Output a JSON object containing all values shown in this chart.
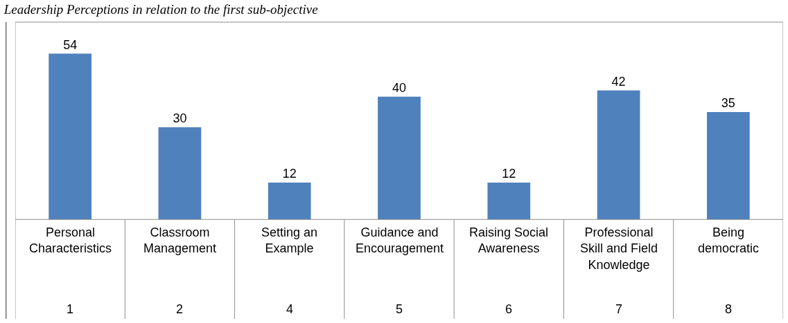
{
  "chart_data": {
    "type": "bar",
    "title": "Leadership Perceptions in relation to the first sub-objective",
    "categories": [
      "Personal Characteristics",
      "Classroom Management",
      "Setting an Example",
      "Guidance and Encouragement",
      "Raising Social Awareness",
      "Professional Skill and Field Knowledge",
      "Being democratic"
    ],
    "values": [
      54,
      30,
      12,
      40,
      12,
      42,
      35
    ],
    "color": "#4f81bd",
    "data_labels": true,
    "legend": false,
    "annotations": [
      "1",
      "2",
      "4",
      "5",
      "6",
      "7",
      "8"
    ]
  }
}
